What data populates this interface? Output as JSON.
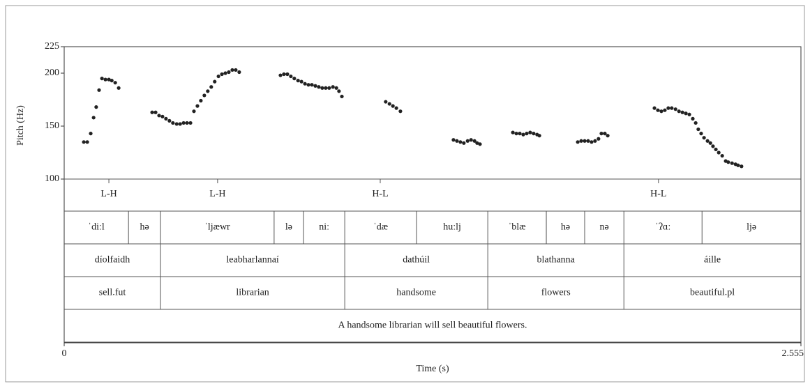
{
  "chart_data": {
    "type": "scatter",
    "x_label": "Time (s)",
    "y_label": "Pitch (Hz)",
    "color": "#222222",
    "xlim": [
      0,
      2.555
    ],
    "xticks": [
      0,
      2.555
    ],
    "ylim": [
      100,
      225
    ],
    "yticks": [
      100,
      150,
      200,
      225
    ],
    "x": [
      0.068,
      0.08,
      0.092,
      0.102,
      0.111,
      0.121,
      0.131,
      0.143,
      0.155,
      0.165,
      0.177,
      0.189,
      0.305,
      0.317,
      0.329,
      0.341,
      0.353,
      0.365,
      0.377,
      0.39,
      0.402,
      0.414,
      0.426,
      0.438,
      0.45,
      0.462,
      0.474,
      0.486,
      0.498,
      0.51,
      0.522,
      0.535,
      0.547,
      0.559,
      0.571,
      0.583,
      0.595,
      0.607,
      0.75,
      0.762,
      0.774,
      0.786,
      0.798,
      0.811,
      0.823,
      0.835,
      0.847,
      0.859,
      0.871,
      0.883,
      0.895,
      0.907,
      0.919,
      0.932,
      0.944,
      0.953,
      0.963,
      1.115,
      1.128,
      1.14,
      1.152,
      1.166,
      1.35,
      1.362,
      1.374,
      1.386,
      1.399,
      1.411,
      1.423,
      1.432,
      1.442,
      1.556,
      1.568,
      1.58,
      1.592,
      1.604,
      1.616,
      1.628,
      1.64,
      1.648,
      1.781,
      1.793,
      1.805,
      1.817,
      1.829,
      1.841,
      1.853,
      1.863,
      1.875,
      1.885,
      2.047,
      2.059,
      2.071,
      2.083,
      2.095,
      2.107,
      2.12,
      2.132,
      2.144,
      2.156,
      2.168,
      2.18,
      2.19,
      2.199,
      2.209,
      2.219,
      2.231,
      2.241,
      2.25,
      2.26,
      2.27,
      2.282,
      2.294,
      2.303,
      2.316,
      2.328,
      2.337,
      2.349
    ],
    "values": [
      135,
      135,
      143,
      158,
      168,
      184,
      195,
      194,
      194,
      193,
      191,
      186,
      163,
      163,
      160,
      159,
      157,
      155,
      153,
      152,
      152,
      153,
      153,
      153,
      164,
      169,
      174,
      179,
      183,
      187,
      192,
      197,
      199,
      200,
      201,
      203,
      203,
      201,
      198,
      199,
      199,
      197,
      195,
      193,
      192,
      190,
      189,
      189,
      188,
      187,
      186,
      186,
      186,
      187,
      186,
      183,
      178,
      173,
      171,
      169,
      167,
      164,
      137,
      136,
      135,
      134,
      136,
      137,
      136,
      134,
      133,
      144,
      143,
      143,
      142,
      143,
      144,
      143,
      142,
      141,
      135,
      136,
      136,
      136,
      135,
      136,
      138,
      143,
      143,
      141,
      167,
      165,
      164,
      165,
      167,
      167,
      166,
      164,
      163,
      162,
      161,
      157,
      153,
      147,
      143,
      139,
      136,
      134,
      131,
      128,
      125,
      122,
      117,
      116,
      115,
      114,
      113,
      112
    ],
    "tone_tier": [
      {
        "time": 0.155,
        "label": "L-H"
      },
      {
        "time": 0.532,
        "label": "L-H"
      },
      {
        "time": 1.096,
        "label": "H-L"
      },
      {
        "time": 2.061,
        "label": "H-L"
      }
    ],
    "interval_tiers": [
      [
        {
          "start": 0,
          "end": 0.223,
          "label": "ˈdiːl"
        },
        {
          "start": 0.223,
          "end": 0.334,
          "label": "hə"
        },
        {
          "start": 0.334,
          "end": 0.728,
          "label": "ˈljæwr"
        },
        {
          "start": 0.728,
          "end": 0.83,
          "label": "lə"
        },
        {
          "start": 0.83,
          "end": 0.973,
          "label": "niː"
        },
        {
          "start": 0.973,
          "end": 1.222,
          "label": "ˈdæ"
        },
        {
          "start": 1.222,
          "end": 1.469,
          "label": "huːlj"
        },
        {
          "start": 1.469,
          "end": 1.672,
          "label": "ˈblæ"
        },
        {
          "start": 1.672,
          "end": 1.805,
          "label": "hə"
        },
        {
          "start": 1.805,
          "end": 1.941,
          "label": "nə"
        },
        {
          "start": 1.941,
          "end": 2.212,
          "label": "ˈʔɑː"
        },
        {
          "start": 2.212,
          "end": 2.555,
          "label": "ljə"
        }
      ],
      [
        {
          "start": 0,
          "end": 0.334,
          "label": "díolfaidh"
        },
        {
          "start": 0.334,
          "end": 0.973,
          "label": "leabharlannaí"
        },
        {
          "start": 0.973,
          "end": 1.469,
          "label": "dathúil"
        },
        {
          "start": 1.469,
          "end": 1.941,
          "label": "blathanna"
        },
        {
          "start": 1.941,
          "end": 2.555,
          "label": "áille"
        }
      ],
      [
        {
          "start": 0,
          "end": 0.334,
          "label": "sell.fut"
        },
        {
          "start": 0.334,
          "end": 0.973,
          "label": "librarian"
        },
        {
          "start": 0.973,
          "end": 1.469,
          "label": "handsome"
        },
        {
          "start": 1.469,
          "end": 1.941,
          "label": "flowers"
        },
        {
          "start": 1.941,
          "end": 2.555,
          "label": "beautiful.pl"
        }
      ],
      [
        {
          "start": 0,
          "end": 2.555,
          "label": "A handsome librarian will sell beautiful flowers."
        }
      ]
    ]
  }
}
